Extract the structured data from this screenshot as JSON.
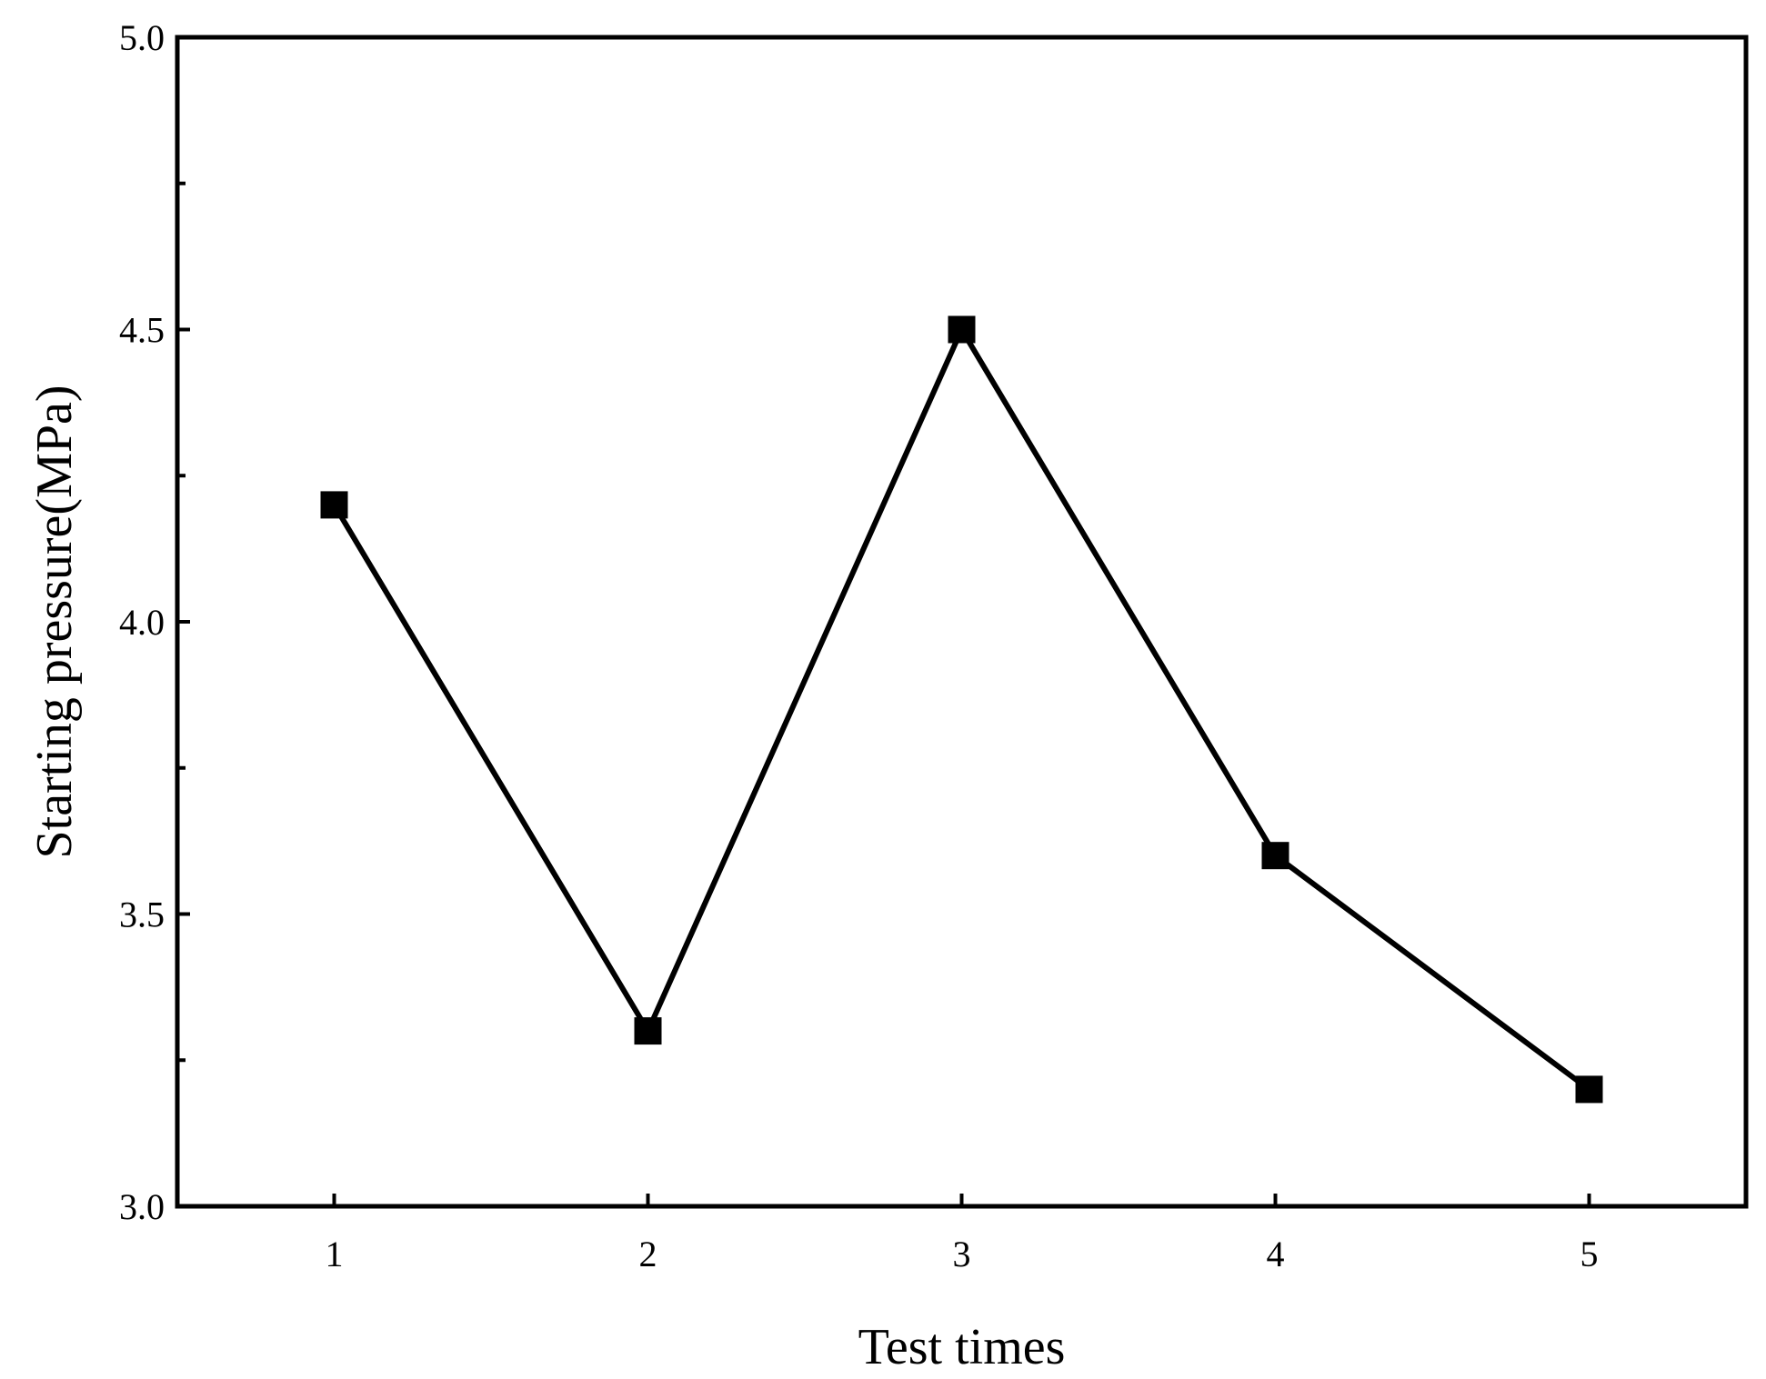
{
  "chart_data": {
    "type": "line",
    "title": "",
    "xlabel": "Test times",
    "ylabel": "Starting pressure(MPa)",
    "x": [
      1,
      2,
      3,
      4,
      5
    ],
    "series": [
      {
        "values": [
          4.2,
          3.3,
          4.5,
          3.6,
          3.2
        ]
      }
    ],
    "xlim": [
      0.5,
      5.5
    ],
    "ylim": [
      3.0,
      5.0
    ],
    "xticks": [
      1,
      2,
      3,
      4,
      5
    ],
    "yticks": [
      3.0,
      3.5,
      4.0,
      4.5,
      5.0
    ],
    "ytick_labels": [
      "3.0",
      "3.5",
      "4.0",
      "4.5",
      "5.0"
    ],
    "ytick_minor": [
      3.25,
      3.75,
      4.25,
      4.75
    ],
    "grid": false,
    "legend": "none",
    "marker": "square",
    "color": "#000000"
  }
}
